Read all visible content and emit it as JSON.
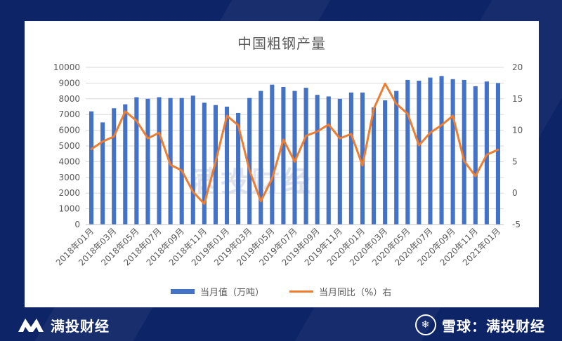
{
  "brand": {
    "left_text": "满投财经",
    "right_text": "雪球：满投财经",
    "watermark_text": "满投财经"
  },
  "chart_data": {
    "type": "bar+line",
    "title": "中国粗钢产量",
    "categories": [
      "2018年01月",
      "2018年02月",
      "2018年03月",
      "2018年04月",
      "2018年05月",
      "2018年06月",
      "2018年07月",
      "2018年08月",
      "2018年09月",
      "2018年10月",
      "2018年11月",
      "2018年12月",
      "2019年01月",
      "2019年02月",
      "2019年03月",
      "2019年04月",
      "2019年05月",
      "2019年06月",
      "2019年07月",
      "2019年08月",
      "2019年09月",
      "2019年10月",
      "2019年11月",
      "2019年12月",
      "2020年01月",
      "2020年02月",
      "2020年03月",
      "2020年04月",
      "2020年05月",
      "2020年06月",
      "2020年07月",
      "2020年08月",
      "2020年09月",
      "2020年10月",
      "2020年11月",
      "2020年12月",
      "2021年01月"
    ],
    "x_tick_labels": [
      "2018年01月",
      "2018年03月",
      "2018年05月",
      "2018年07月",
      "2018年09月",
      "2018年11月",
      "2019年01月",
      "2019年03月",
      "2019年05月",
      "2019年07月",
      "2019年09月",
      "2019年11月",
      "2020年01月",
      "2020年03月",
      "2020年05月",
      "2020年07月",
      "2020年09月",
      "2020年11月",
      "2021年01月"
    ],
    "series": [
      {
        "name": "当月值（万吨）",
        "type": "bar",
        "axis": "left",
        "color": "#4472c4",
        "values": [
          7200,
          6500,
          7400,
          7650,
          8100,
          8000,
          8100,
          8050,
          8050,
          8200,
          7750,
          7600,
          7500,
          7100,
          8050,
          8500,
          8900,
          8750,
          8500,
          8700,
          8250,
          8150,
          8000,
          8400,
          8400,
          7450,
          7900,
          8500,
          9200,
          9150,
          9350,
          9450,
          9250,
          9200,
          8800,
          9100,
          9000
        ]
      },
      {
        "name": "当月同比（%）右",
        "type": "line",
        "axis": "right",
        "color": "#ed7d31",
        "values": [
          7,
          8.2,
          9,
          13,
          11.5,
          8.7,
          9.6,
          4.5,
          3.6,
          0.2,
          -1.7,
          5,
          12.3,
          10.8,
          3.6,
          -1.3,
          2.3,
          8.5,
          5,
          9.1,
          9.8,
          10.9,
          8.7,
          9.4,
          4.4,
          13.4,
          17.4,
          14.2,
          12.6,
          7.6,
          9.6,
          10.8,
          12.3,
          5.1,
          2.7,
          6.1,
          6.9
        ]
      }
    ],
    "y_left": {
      "min": 0,
      "max": 10000,
      "ticks": [
        0,
        1000,
        2000,
        3000,
        4000,
        5000,
        6000,
        7000,
        8000,
        9000,
        10000
      ]
    },
    "y_right": {
      "min": -5,
      "max": 20,
      "ticks": [
        -5,
        0,
        5,
        10,
        15,
        20
      ]
    },
    "grid": true,
    "legend_position": "bottom"
  }
}
